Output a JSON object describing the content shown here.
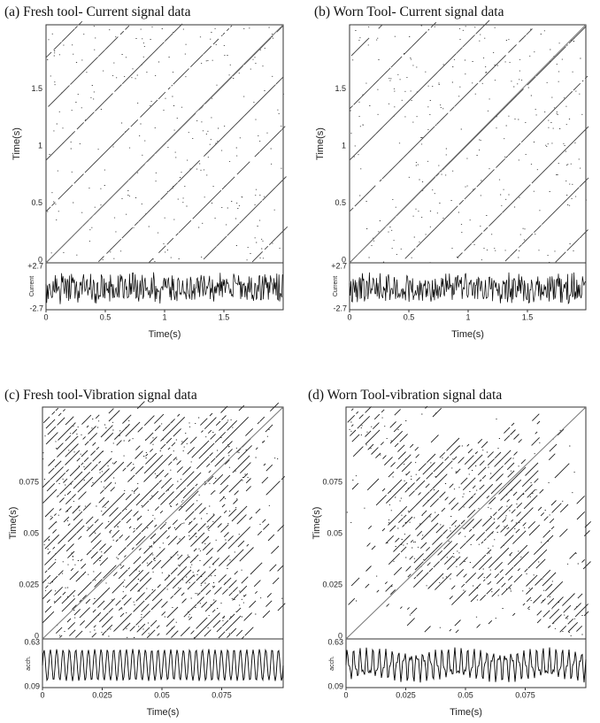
{
  "panels": [
    {
      "title": "(a)  Fresh tool- Current signal data",
      "y_axis_label": "Time(s)",
      "y_ticks": [
        "0",
        "0.5",
        "1",
        "1.5"
      ],
      "signal_label": "Current",
      "signal_ticks": [
        "+2.7",
        "-2.7"
      ],
      "x_ticks": [
        "0",
        "0.5",
        "1",
        "1.5"
      ],
      "x_axis_label": "Time(s)"
    },
    {
      "title": "(b) Worn Tool- Current signal data",
      "y_axis_label": "Time(s)",
      "y_ticks": [
        "0",
        "0.5",
        "1",
        "1.5"
      ],
      "signal_label": "Current",
      "signal_ticks": [
        "+2.7",
        "-2.7"
      ],
      "x_ticks": [
        "0",
        "0.5",
        "1",
        "1.5"
      ],
      "x_axis_label": "Time(s)"
    },
    {
      "title": "(c) Fresh tool-Vibration  signal data",
      "y_axis_label": "Time(s)",
      "y_ticks": [
        "0",
        "0.025",
        "0.05",
        "0.075"
      ],
      "signal_label": "acch.",
      "signal_ticks": [
        "0.63",
        "0.09"
      ],
      "x_ticks": [
        "0",
        "0.025",
        "0.05",
        "0.075"
      ],
      "x_axis_label": "Time(s)"
    },
    {
      "title": "(d) Worn Tool-vibration signal data",
      "y_axis_label": "Time(s)",
      "y_ticks": [
        "0",
        "0.025",
        "0.05",
        "0.075"
      ],
      "signal_label": "acch.",
      "signal_ticks": [
        "0.63",
        "0.09"
      ],
      "x_ticks": [
        "0",
        "0.025",
        "0.05",
        "0.075"
      ],
      "x_axis_label": "Time(s)"
    }
  ]
}
